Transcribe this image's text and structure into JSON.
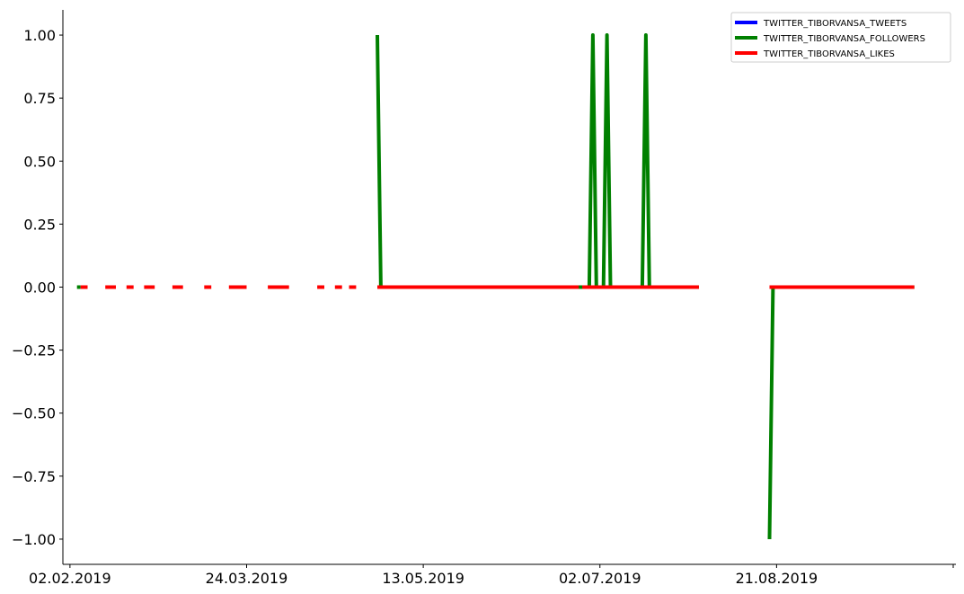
{
  "chart_data": {
    "type": "line",
    "title": "",
    "xlabel": "",
    "ylabel": "",
    "x_tick_labels": [
      "02.02.2019",
      "24.03.2019",
      "13.05.2019",
      "02.07.2019",
      "21.08.2019"
    ],
    "x_tick_dates": [
      "2019-02-02",
      "2019-03-24",
      "2019-05-13",
      "2019-07-02",
      "2019-08-21",
      "2019-10-10"
    ],
    "y_ticks": [
      1.0,
      0.75,
      0.5,
      0.25,
      0.0,
      -0.25,
      -0.5,
      -0.75,
      -1.0
    ],
    "y_tick_labels": [
      "1.00",
      "0.75",
      "0.50",
      "0.25",
      "0.00",
      "−0.25",
      "−0.50",
      "−0.75",
      "−1.00"
    ],
    "xlim": [
      "2019-01-31",
      "2019-10-10"
    ],
    "ylim": [
      -1.1,
      1.1
    ],
    "grid": false,
    "legend_position": "top-right",
    "series": [
      {
        "name": "TWITTER_TIBORVANSA_TWEETS",
        "color": "#0000ff",
        "segments": []
      },
      {
        "name": "TWITTER_TIBORVANSA_FOLLOWERS",
        "color": "#008000",
        "segments": [
          [
            [
              "2019-02-04",
              0
            ],
            [
              "2019-02-05",
              0
            ]
          ],
          [
            [
              "2019-04-30",
              1
            ],
            [
              "2019-05-01",
              0
            ],
            [
              "2019-06-29",
              0
            ],
            [
              "2019-06-30",
              1
            ],
            [
              "2019-07-01",
              0
            ],
            [
              "2019-07-03",
              0
            ],
            [
              "2019-07-04",
              1
            ],
            [
              "2019-07-05",
              0
            ],
            [
              "2019-07-14",
              0
            ],
            [
              "2019-07-15",
              1
            ],
            [
              "2019-07-16",
              0
            ],
            [
              "2019-07-30",
              0
            ]
          ],
          [
            [
              "2019-08-19",
              -1
            ],
            [
              "2019-08-20",
              0
            ],
            [
              "2019-09-29",
              0
            ]
          ]
        ]
      },
      {
        "name": "TWITTER_TIBORVANSA_LIKES",
        "color": "#ff0000",
        "segments": [
          [
            [
              "2019-02-05",
              0
            ],
            [
              "2019-02-07",
              0
            ]
          ],
          [
            [
              "2019-02-12",
              0
            ],
            [
              "2019-02-15",
              0
            ]
          ],
          [
            [
              "2019-02-18",
              0
            ],
            [
              "2019-02-20",
              0
            ]
          ],
          [
            [
              "2019-02-23",
              0
            ],
            [
              "2019-02-26",
              0
            ]
          ],
          [
            [
              "2019-03-03",
              0
            ],
            [
              "2019-03-06",
              0
            ]
          ],
          [
            [
              "2019-03-12",
              0
            ],
            [
              "2019-03-14",
              0
            ]
          ],
          [
            [
              "2019-03-19",
              0
            ],
            [
              "2019-03-24",
              0
            ]
          ],
          [
            [
              "2019-03-30",
              0
            ],
            [
              "2019-04-05",
              0
            ]
          ],
          [
            [
              "2019-04-13",
              0
            ],
            [
              "2019-04-15",
              0
            ]
          ],
          [
            [
              "2019-04-18",
              0
            ],
            [
              "2019-04-20",
              0
            ]
          ],
          [
            [
              "2019-04-22",
              0
            ],
            [
              "2019-04-24",
              0
            ]
          ],
          [
            [
              "2019-04-30",
              0
            ],
            [
              "2019-06-26",
              0
            ]
          ],
          [
            [
              "2019-06-27",
              0
            ],
            [
              "2019-07-30",
              0
            ]
          ],
          [
            [
              "2019-08-19",
              0
            ],
            [
              "2019-09-29",
              0
            ]
          ]
        ]
      }
    ]
  }
}
